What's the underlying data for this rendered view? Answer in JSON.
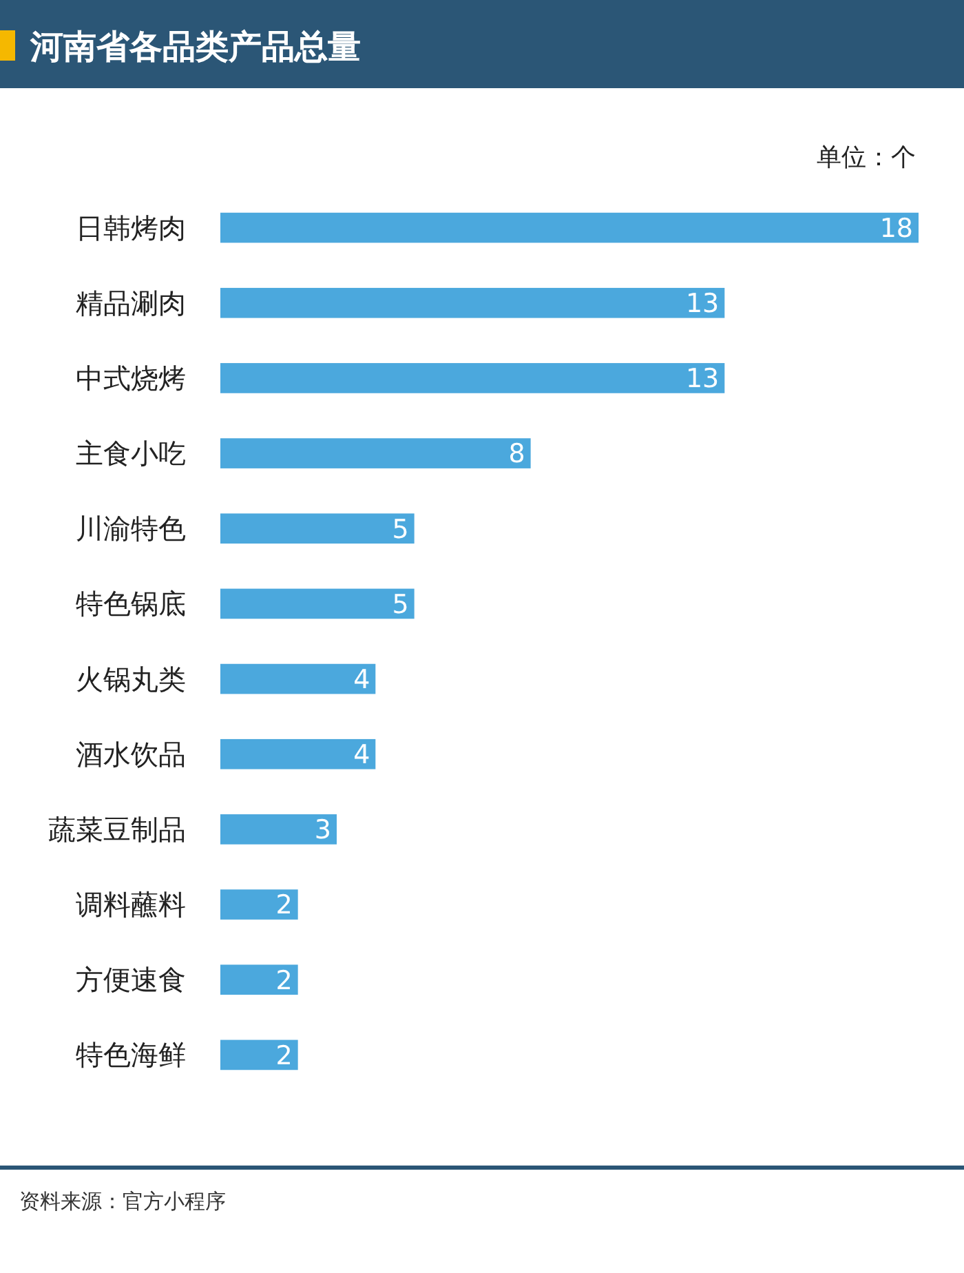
{
  "chart_data": {
    "type": "bar",
    "orientation": "horizontal",
    "title": "河南省各品类产品总量",
    "subtitle": "单位：个",
    "categories": [
      "日韩烤肉",
      "精品涮肉",
      "中式烧烤",
      "主食小吃",
      "川渝特色",
      "特色锅底",
      "火锅丸类",
      "酒水饮品",
      "蔬菜豆制品",
      "调料蘸料",
      "方便速食",
      "特色海鲜"
    ],
    "values": [
      18,
      13,
      13,
      8,
      5,
      5,
      4,
      4,
      3,
      2,
      2,
      2
    ],
    "color": "#4ba8dd",
    "data_labels": true,
    "annotations": [
      "资料来源：官方小程序"
    ]
  }
}
